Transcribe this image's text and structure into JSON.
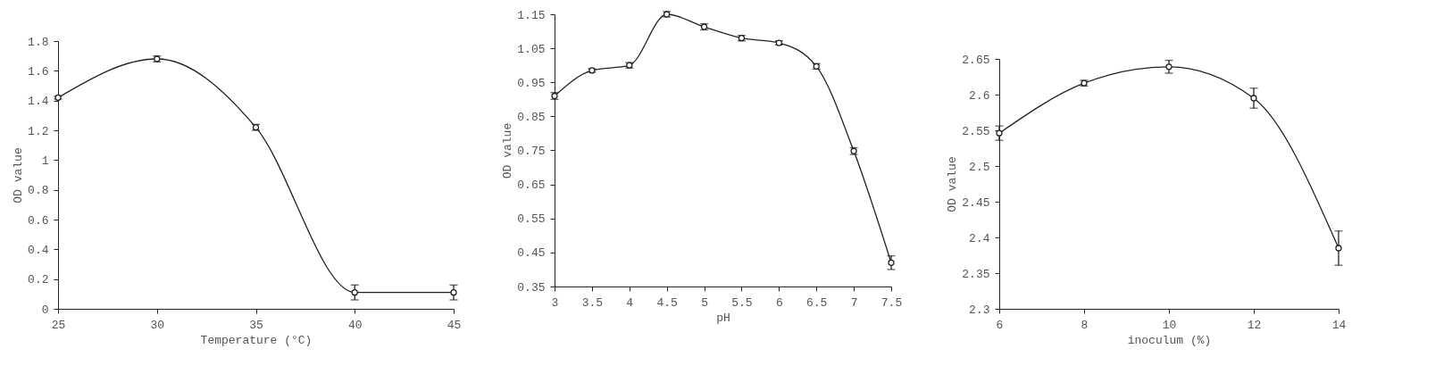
{
  "chart_data": [
    {
      "type": "line",
      "xlabel": "Temperature (°C)",
      "ylabel": "OD value",
      "x": [
        25,
        30,
        35,
        40,
        45
      ],
      "xlim": [
        25,
        45
      ],
      "xticks": [
        25,
        30,
        35,
        40,
        45
      ],
      "ylim": [
        0,
        1.8
      ],
      "yticks": [
        0,
        {
          "value": 0.2,
          "label": "0.2"
        },
        {
          "value": 0.4,
          "label": "0.4"
        },
        {
          "value": 0.6,
          "label": "0.6"
        },
        {
          "value": 0.8,
          "label": "0.8"
        },
        1,
        {
          "value": 1.2,
          "label": "1.2"
        },
        {
          "value": 1.4,
          "label": "1.4"
        },
        {
          "value": 1.6,
          "label": "1.6"
        },
        {
          "value": 1.8,
          "label": "1.8"
        }
      ],
      "grid": false,
      "marker": "circle",
      "series": [
        {
          "color": "#222222",
          "values": [
            1.42,
            1.68,
            1.22,
            0.11,
            0.11
          ],
          "errors": [
            0.01,
            0.02,
            0.02,
            0.05,
            0.05
          ]
        }
      ]
    },
    {
      "type": "line",
      "xlabel": "pH",
      "ylabel": "OD value",
      "x": [
        3,
        3.5,
        4,
        4.5,
        5,
        5.5,
        6,
        6.5,
        7,
        7.5
      ],
      "xlim": [
        3,
        7.5
      ],
      "xticks": [
        3,
        3.5,
        4,
        4.5,
        5,
        5.5,
        6,
        6.5,
        7,
        7.5
      ],
      "ylim": [
        0.35,
        1.15
      ],
      "yticks": [
        0.35,
        0.45,
        0.55,
        0.65,
        0.75,
        0.85,
        0.95,
        1.05,
        1.15
      ],
      "grid": false,
      "marker": "circle",
      "series": [
        {
          "color": "#222222",
          "values": [
            0.91,
            0.985,
            1.0,
            1.15,
            1.113,
            1.08,
            1.066,
            0.997,
            0.748,
            0.42
          ],
          "errors": [
            0.01,
            0.005,
            0.008,
            0.008,
            0.009,
            0.008,
            0.006,
            0.008,
            0.01,
            0.02
          ]
        }
      ]
    },
    {
      "type": "line",
      "xlabel": "inoculum (%)",
      "ylabel": "OD value",
      "x": [
        6,
        8,
        10,
        12,
        14
      ],
      "xlim": [
        6,
        14
      ],
      "xticks": [
        6,
        8,
        10,
        12,
        14
      ],
      "ylim": [
        2.3,
        2.65
      ],
      "yticks": [
        {
          "value": 2.3,
          "label": "2.3"
        },
        2.35,
        {
          "value": 2.4,
          "label": "2.4"
        },
        2.45,
        {
          "value": 2.5,
          "label": "2.5"
        },
        2.55,
        {
          "value": 2.6,
          "label": "2.6"
        },
        2.65
      ],
      "grid": false,
      "marker": "circle",
      "series": [
        {
          "color": "#222222",
          "values": [
            2.546,
            2.616,
            2.639,
            2.595,
            2.385
          ],
          "errors": [
            0.01,
            0.004,
            0.009,
            0.014,
            0.024
          ]
        }
      ]
    }
  ]
}
